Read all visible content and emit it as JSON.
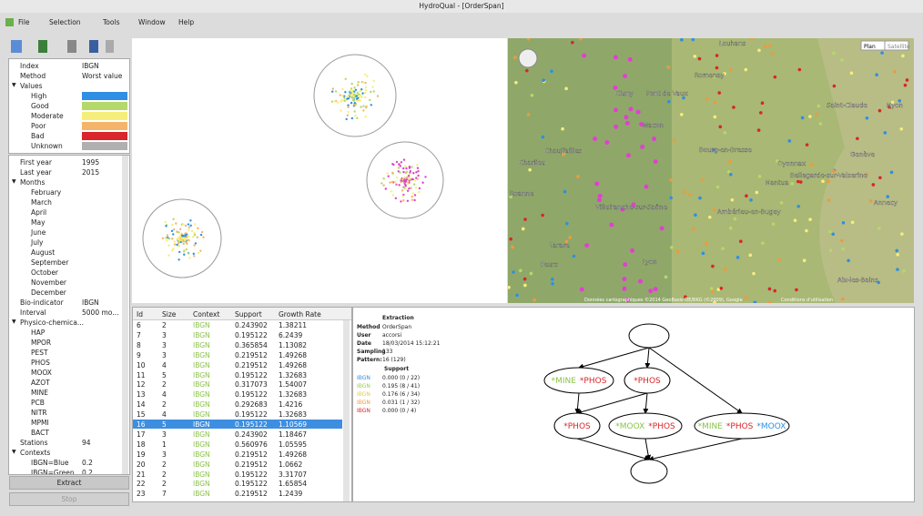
{
  "window": {
    "title": "HydroQual - [OrderSpan]",
    "menu": [
      "File",
      "Selection",
      "Tools",
      "Window",
      "Help"
    ]
  },
  "index_panel": {
    "rows": [
      {
        "label": "Index",
        "value": "IBGN"
      },
      {
        "label": "Method",
        "value": "Worst value"
      }
    ],
    "values_label": "Values",
    "values": [
      {
        "name": "High",
        "color": "#2e8fe3"
      },
      {
        "name": "Good",
        "color": "#b5d86a"
      },
      {
        "name": "Moderate",
        "color": "#f6ee7a"
      },
      {
        "name": "Poor",
        "color": "#f4b56a"
      },
      {
        "name": "Bad",
        "color": "#d8262a"
      },
      {
        "name": "Unknown",
        "color": "#b0b0b0"
      }
    ]
  },
  "params": [
    {
      "label": "First year",
      "value": "1995"
    },
    {
      "label": "Last year",
      "value": "2015"
    },
    {
      "group": "Months",
      "items": [
        {
          "label": "February"
        },
        {
          "label": "March"
        },
        {
          "label": "April"
        },
        {
          "label": "May"
        },
        {
          "label": "June"
        },
        {
          "label": "July"
        },
        {
          "label": "August"
        },
        {
          "label": "September"
        },
        {
          "label": "October"
        },
        {
          "label": "November"
        },
        {
          "label": "December"
        }
      ]
    },
    {
      "label": "Bio-indicator",
      "value": "IBGN"
    },
    {
      "label": "Interval",
      "value": "5000 mo..."
    },
    {
      "group": "Physico-chemica...",
      "items": [
        {
          "label": "HAP"
        },
        {
          "label": "MPOR"
        },
        {
          "label": "PEST"
        },
        {
          "label": "PHOS"
        },
        {
          "label": "MOOX"
        },
        {
          "label": "AZOT"
        },
        {
          "label": "MINE"
        },
        {
          "label": "PCB"
        },
        {
          "label": "NITR"
        },
        {
          "label": "MPMI"
        },
        {
          "label": "BACT"
        }
      ]
    },
    {
      "label": "Stations",
      "value": "94"
    },
    {
      "group": "Contexts",
      "items": [
        {
          "label": "IBGN=Blue",
          "value": "0.2"
        },
        {
          "label": "IBGN=Green",
          "value": "0.2"
        }
      ]
    }
  ],
  "buttons": [
    "Extract",
    "Stop"
  ],
  "map": {
    "modes": [
      "Plan",
      "Satellite"
    ],
    "labels": [
      "Louhans",
      "Romenay",
      "Pont de Vaux",
      "Cluny",
      "Macon",
      "Bourg-en-Bresse",
      "Chauffailles",
      "Charlieu",
      "Roanne",
      "Villefranche-sur-Saône",
      "Ambérieu-en-Bugey",
      "Lyon",
      "Tarare",
      "Feurs",
      "Oyonnax",
      "Nantua",
      "Bellegarde-sur-Valserine",
      "Saint-Claude",
      "Genève",
      "Nyon",
      "Annecy",
      "Aix-les-Bains"
    ],
    "footer": "Données cartographiques ©2014 GeoBasis-DE/BKG (©2009), Google",
    "terms": "Conditions d'utilisation"
  },
  "table": {
    "columns": [
      "Id",
      "Size",
      "Context",
      "Support",
      "Growth Rate"
    ],
    "selected_row": 10,
    "rows": [
      [
        "6",
        "2",
        "IBGN",
        "0.243902",
        "1.38211"
      ],
      [
        "7",
        "3",
        "IBGN",
        "0.195122",
        "6.2439"
      ],
      [
        "8",
        "3",
        "IBGN",
        "0.365854",
        "1.13082"
      ],
      [
        "9",
        "3",
        "IBGN",
        "0.219512",
        "1.49268"
      ],
      [
        "10",
        "4",
        "IBGN",
        "0.219512",
        "1.49268"
      ],
      [
        "11",
        "5",
        "IBGN",
        "0.195122",
        "1.32683"
      ],
      [
        "12",
        "2",
        "IBGN",
        "0.317073",
        "1.54007"
      ],
      [
        "13",
        "4",
        "IBGN",
        "0.195122",
        "1.32683"
      ],
      [
        "14",
        "2",
        "IBGN",
        "0.292683",
        "1.4216"
      ],
      [
        "15",
        "4",
        "IBGN",
        "0.195122",
        "1.32683"
      ],
      [
        "16",
        "5",
        "IBGN",
        "0.195122",
        "1.10569"
      ],
      [
        "17",
        "3",
        "IBGN",
        "0.243902",
        "1.18467"
      ],
      [
        "18",
        "1",
        "IBGN",
        "0.560976",
        "1.05595"
      ],
      [
        "19",
        "3",
        "IBGN",
        "0.219512",
        "1.49268"
      ],
      [
        "20",
        "2",
        "IBGN",
        "0.219512",
        "1.0662"
      ],
      [
        "21",
        "2",
        "IBGN",
        "0.195122",
        "3.31707"
      ],
      [
        "22",
        "2",
        "IBGN",
        "0.195122",
        "1.65854"
      ],
      [
        "23",
        "7",
        "IBGN",
        "0.219512",
        "1.2439"
      ]
    ]
  },
  "details": {
    "title": "Extraction",
    "rows": [
      {
        "label": "Method",
        "value": "OrderSpan"
      },
      {
        "label": "User",
        "value": "accorsi"
      },
      {
        "label": "Date",
        "value": "18/03/2014 15:12:21"
      },
      {
        "label": "Sampling",
        "value": "133"
      },
      {
        "label": "Pattern:",
        "value": "16 (129)"
      }
    ],
    "support_title": "Support",
    "support": [
      {
        "label": "IBGN",
        "color": "#2e8fe3",
        "value": "0.000 (0 / 22)"
      },
      {
        "label": "IBGN",
        "color": "#9ccc4a",
        "value": "0.195 (8 / 41)"
      },
      {
        "label": "IBGN",
        "color": "#e4cf2a",
        "value": "0.176 (6 / 34)"
      },
      {
        "label": "IBGN",
        "color": "#f09a3a",
        "value": "0.031 (1 / 32)"
      },
      {
        "label": "IBGN",
        "color": "#d8262a",
        "value": "0.000 (0 / 4)"
      }
    ]
  },
  "graph": {
    "nodes": [
      {
        "parts": []
      },
      {
        "parts": [
          {
            "text": "*MINE",
            "color": "#8bc34a"
          },
          {
            "text": "*PHOS",
            "color": "#d8262a"
          }
        ]
      },
      {
        "parts": [
          {
            "text": "*PHOS",
            "color": "#d8262a"
          }
        ]
      },
      {
        "parts": [
          {
            "text": "*PHOS",
            "color": "#d8262a"
          }
        ]
      },
      {
        "parts": [
          {
            "text": "*MOOX",
            "color": "#8bc34a"
          },
          {
            "text": "*PHOS",
            "color": "#d8262a"
          }
        ]
      },
      {
        "parts": [
          {
            "text": "*MINE",
            "color": "#8bc34a"
          },
          {
            "text": "*PHOS",
            "color": "#d8262a"
          },
          {
            "text": "*MOOX",
            "color": "#2e8fe3"
          }
        ]
      },
      {
        "parts": []
      }
    ]
  }
}
